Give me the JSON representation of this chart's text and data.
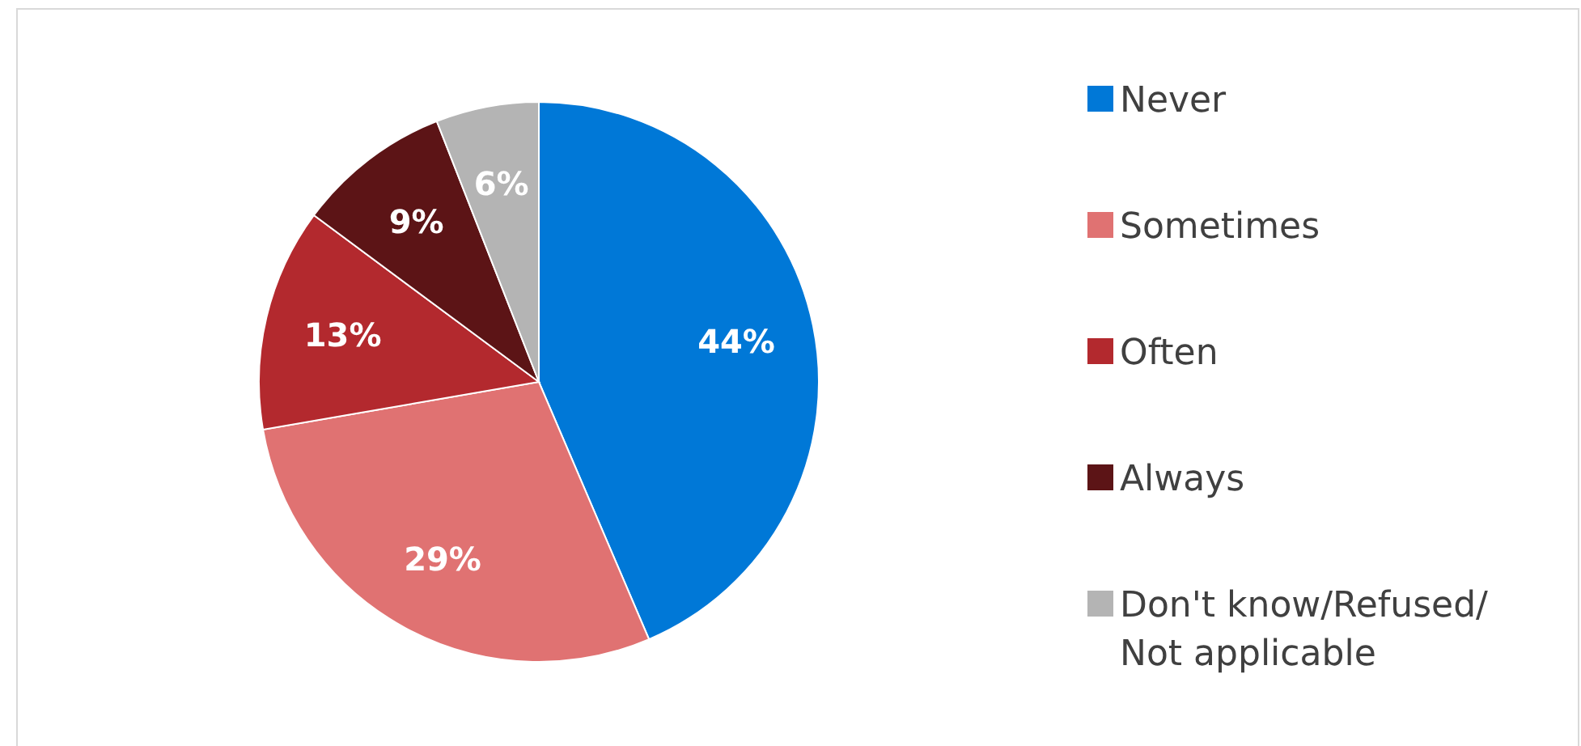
{
  "chart_data": {
    "type": "pie",
    "categories": [
      "Never",
      "Sometimes",
      "Often",
      "Always",
      "Don't know/Refused/ Not applicable"
    ],
    "values": [
      44,
      29,
      13,
      9,
      6
    ],
    "colors": [
      "#0078d7",
      "#e07272",
      "#b3292e",
      "#5c1416",
      "#b4b4b4"
    ],
    "value_labels": [
      "44%",
      "29%",
      "13%",
      "9%",
      "6%"
    ],
    "legend": "right"
  }
}
